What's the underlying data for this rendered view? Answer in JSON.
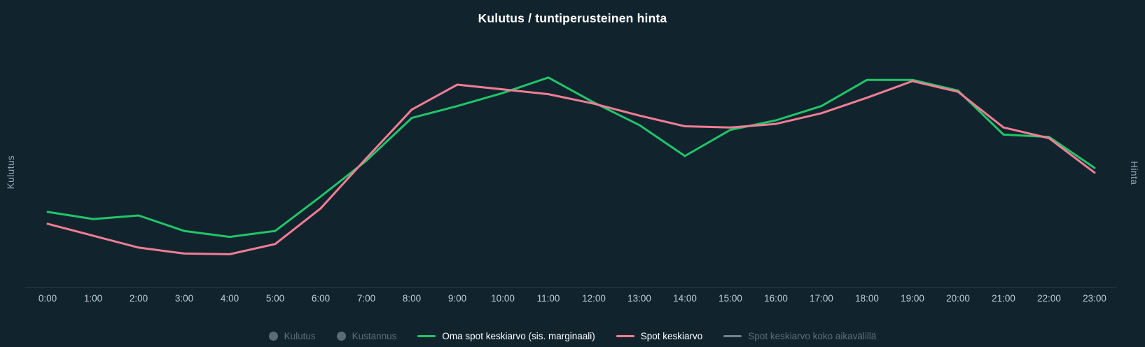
{
  "title": "Kulutus / tuntiperusteinen hinta",
  "y_axis_left_title": "Kulutus",
  "y_axis_right_title": "Hinta",
  "colors": {
    "background": "#11242e",
    "title_text": "#ffffff",
    "axis_line": "#263a47",
    "tick_label": "#c2cdd4",
    "axis_title_text": "#93a6b1",
    "green_series": "#22c468",
    "pink_series": "#f27d95",
    "disabled_text": "#5f6e78",
    "disabled_circle_marker": "#5d6b76",
    "disabled_line_marker": "#75828b"
  },
  "legend": {
    "items": [
      {
        "label": "Kulutus",
        "marker": "circle",
        "color": "#5d6b76",
        "active": false
      },
      {
        "label": "Kustannus",
        "marker": "circle",
        "color": "#5d6b76",
        "active": false
      },
      {
        "label": "Oma spot keskiarvo (sis. marginaali)",
        "marker": "line",
        "color": "#22c468",
        "active": true
      },
      {
        "label": "Spot keskiarvo",
        "marker": "line",
        "color": "#f27d95",
        "active": true
      },
      {
        "label": "Spot keskiarvo koko aikavälillä",
        "marker": "line",
        "color": "#75828b",
        "active": false
      }
    ]
  },
  "chart_data": {
    "type": "line",
    "title": "Kulutus / tuntiperusteinen hinta",
    "categories": [
      "0:00",
      "1:00",
      "2:00",
      "3:00",
      "4:00",
      "5:00",
      "6:00",
      "7:00",
      "8:00",
      "9:00",
      "10:00",
      "11:00",
      "12:00",
      "13:00",
      "14:00",
      "15:00",
      "16:00",
      "17:00",
      "18:00",
      "19:00",
      "20:00",
      "21:00",
      "22:00",
      "23:00"
    ],
    "series": [
      {
        "name": "Oma spot keskiarvo (sis. marginaali)",
        "color": "#22c468",
        "values": [
          31.5,
          28.5,
          30,
          23.5,
          21,
          23.5,
          38,
          53,
          71,
          76,
          81.5,
          88,
          77.5,
          68,
          55,
          66,
          70,
          76,
          87,
          87,
          82.5,
          64,
          63,
          50
        ]
      },
      {
        "name": "Spot keskiarvo",
        "color": "#f27d95",
        "values": [
          26.5,
          21.5,
          16.5,
          14,
          13.7,
          18,
          33,
          54,
          74.5,
          85,
          83,
          81,
          77,
          72,
          67.5,
          67,
          68.5,
          73,
          79.5,
          86.5,
          82,
          67,
          62.5,
          48
        ]
      }
    ],
    "hidden_series_names": [
      "Kulutus",
      "Kustannus",
      "Spot keskiarvo koko aikavälillä"
    ],
    "xlabel": "",
    "ylabel_left": "Kulutus",
    "ylabel_right": "Hinta",
    "ylim": [
      0,
      100
    ],
    "y_axis_numeric_labels_visible": false,
    "values_scale_note": "no numeric y-axis shown; values are relative 0-100 estimates read from pixel positions",
    "grid": false,
    "legend_position": "bottom"
  }
}
